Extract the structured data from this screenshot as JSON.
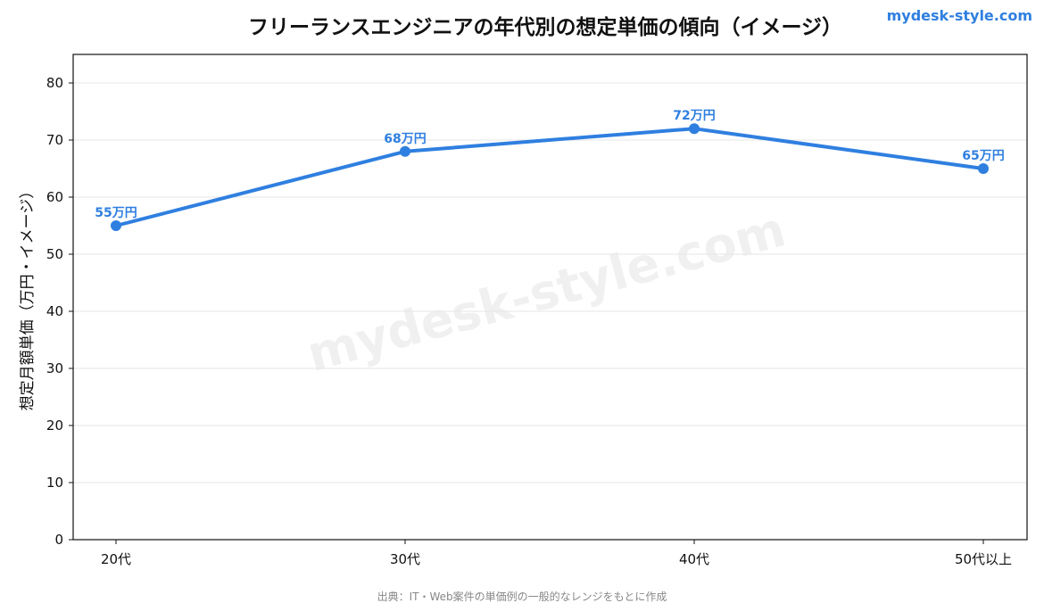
{
  "chart_data": {
    "type": "line",
    "title": "フリーランスエンジニアの年代別の想定単価の傾向（イメージ）",
    "xlabel": "",
    "ylabel": "想定月額単価（万円・イメージ）",
    "categories": [
      "20代",
      "30代",
      "40代",
      "50代以上"
    ],
    "series": [
      {
        "values": [
          55,
          68,
          72,
          65
        ],
        "labels": [
          "55万円",
          "68万円",
          "72万円",
          "65万円"
        ]
      }
    ],
    "ylim": [
      0,
      85
    ],
    "yticks": [
      0,
      10,
      20,
      30,
      40,
      50,
      60,
      70,
      80
    ],
    "grid": true,
    "line_color": "#2f7fe0"
  },
  "brand": "mydesk-style.com",
  "watermark": "mydesk-style.com",
  "source": "出典：IT・Web案件の単価例の一般的なレンジをもとに作成"
}
